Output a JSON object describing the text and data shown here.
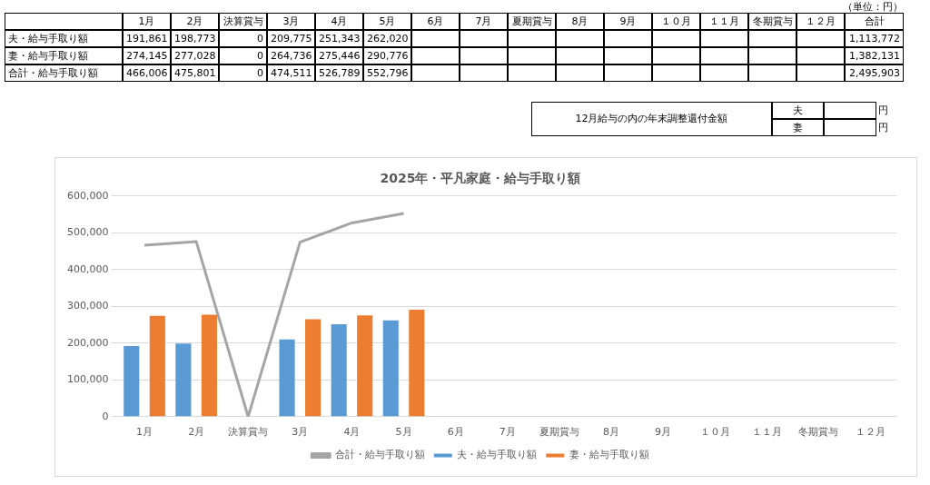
{
  "chart_data": [
    {
      "type": "heatmap",
      "categories": [
        "1月",
        "2月",
        "決算賞与",
        "3月",
        "4月",
        "5月",
        "6月",
        "7月",
        "夏期賞与",
        "8月",
        "9月",
        "１０月",
        "１１月",
        "冬期賞与",
        "１２月",
        "合計"
      ],
      "y_categories": [
        "夫・給与手取り額",
        "妻・給与手取り額",
        "合計・給与手取り額"
      ],
      "cells": [
        [
          null,
          null,
          null,
          null,
          null,
          null,
          null,
          null,
          null,
          null,
          null,
          null,
          null,
          null,
          null,
          null
        ],
        [
          null,
          null,
          null,
          null,
          null,
          null,
          null,
          null,
          null,
          null,
          null,
          null,
          null,
          null,
          null,
          null
        ],
        [
          null,
          null,
          null,
          null,
          null,
          null,
          null,
          null,
          null,
          null,
          null,
          null,
          null,
          null,
          null,
          null
        ]
      ],
      "cell_labels": [
        [
          "191,861",
          "198,773",
          "0",
          "209,775",
          "251,343",
          "262,020",
          null,
          null,
          null,
          null,
          null,
          null,
          null,
          null,
          null,
          "1,113,772"
        ],
        [
          "274,145",
          "277,028",
          "0",
          "264,736",
          "275,446",
          "290,776",
          null,
          null,
          null,
          null,
          null,
          null,
          null,
          null,
          null,
          "1,382,131"
        ],
        [
          "466,006",
          "475,801",
          "0",
          "474,511",
          "526,789",
          "552,796",
          null,
          null,
          null,
          null,
          null,
          null,
          null,
          null,
          null,
          "2,495,903"
        ]
      ],
      "annotations": [
        "（単位：円）",
        "12月給与の内の年末調整還付金額",
        "夫",
        "円",
        "妻",
        "円"
      ]
    },
    {
      "type": "bar",
      "title": "2025年・平凡家庭・給与手取り額",
      "categories": [
        "1月",
        "2月",
        "決算賞与",
        "3月",
        "4月",
        "5月",
        "6月",
        "7月",
        "夏期賞与",
        "8月",
        "9月",
        "１０月",
        "１１月",
        "冬期賞与",
        "１２月"
      ],
      "series": [
        {
          "name": "夫・給与手取り額",
          "color": "#5b9bd5",
          "values": [
            191861,
            198773,
            0,
            209775,
            251343,
            262020,
            null,
            null,
            null,
            null,
            null,
            null,
            null,
            null,
            null
          ]
        },
        {
          "name": "妻・給与手取り額",
          "color": "#ed7d31",
          "values": [
            274145,
            277028,
            0,
            264736,
            275446,
            290776,
            null,
            null,
            null,
            null,
            null,
            null,
            null,
            null,
            null
          ]
        },
        {
          "name": "合計・給与手取り額",
          "type": "line",
          "color": "#a5a5a5",
          "values": [
            466006,
            475801,
            0,
            474511,
            526789,
            552796,
            null,
            null,
            null,
            null,
            null,
            null,
            null,
            null,
            null
          ]
        }
      ],
      "ylim": [
        0,
        600000
      ],
      "yticks": [
        {
          "value": 0,
          "label": "0"
        },
        {
          "value": 100000,
          "label": "100,000"
        },
        {
          "value": 200000,
          "label": "200,000"
        },
        {
          "value": 300000,
          "label": "300,000"
        },
        {
          "value": 400000,
          "label": "400,000"
        },
        {
          "value": 500000,
          "label": "500,000"
        },
        {
          "value": 600000,
          "label": "600,000"
        }
      ],
      "grid": "y",
      "legend": "bottom",
      "marker": "none"
    }
  ]
}
